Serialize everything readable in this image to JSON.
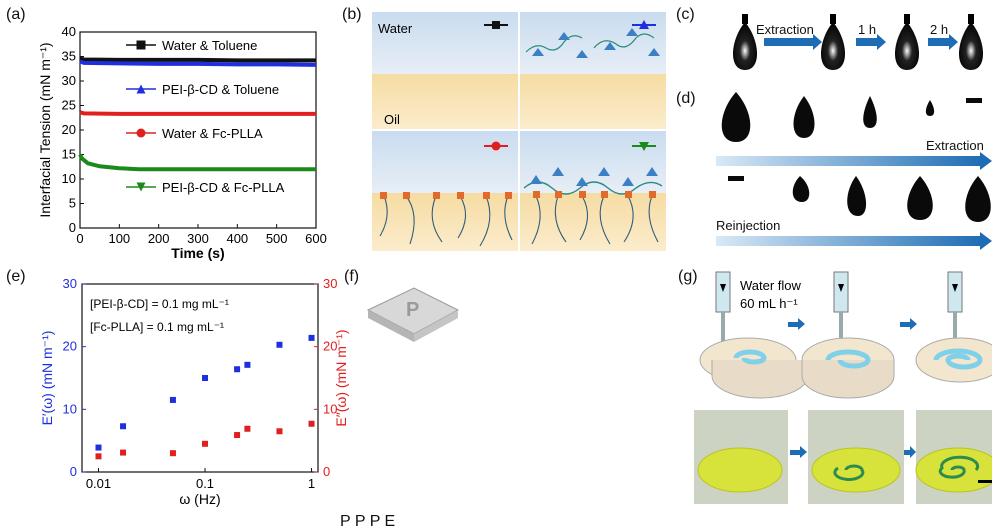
{
  "labels": {
    "a": "(a)",
    "b": "(b)",
    "c": "(c)",
    "d": "(d)",
    "e": "(e)",
    "f": "(f)",
    "g": "(g)"
  },
  "panel_b": {
    "water": "Water",
    "oil": "Oil"
  },
  "panel_c": {
    "extraction": "Extraction",
    "t1": "1 h",
    "t2": "2 h"
  },
  "panel_d": {
    "extraction": "Extraction",
    "reinjection": "Reinjection"
  },
  "panel_g": {
    "flow_line1": "Water flow",
    "flow_line2": "60 mL h⁻¹"
  },
  "colors": {
    "blue": "#1f2fe0",
    "red": "#e0201f",
    "green": "#1b8a1b",
    "black": "#111111",
    "arrow": "#1e6db4"
  },
  "chart_data": [
    {
      "type": "line",
      "xlabel": "Time (s)",
      "ylabel": "Interfacial Tension (mN m⁻¹)",
      "xlim": [
        0,
        600
      ],
      "ylim": [
        0,
        40
      ],
      "xticks": [
        "0",
        "100",
        "200",
        "300",
        "400",
        "500",
        "600"
      ],
      "yticks": [
        "0",
        "5",
        "10",
        "15",
        "20",
        "25",
        "30",
        "35",
        "40"
      ],
      "series": [
        {
          "name": "Water & Toluene",
          "color": "#111111",
          "marker": "square",
          "x": [
            0,
            10,
            100,
            200,
            300,
            400,
            500,
            600
          ],
          "y": [
            34.6,
            34.4,
            34.3,
            34.3,
            34.3,
            34.2,
            34.2,
            34.2
          ]
        },
        {
          "name": "PEI-β-CD & Toluene",
          "color": "#1f2fe0",
          "marker": "triangle",
          "x": [
            0,
            10,
            100,
            200,
            300,
            400,
            500,
            600
          ],
          "y": [
            34.0,
            33.7,
            33.6,
            33.5,
            33.5,
            33.4,
            33.4,
            33.3
          ]
        },
        {
          "name": "Water & Fc-PLLA",
          "color": "#e0201f",
          "marker": "circle",
          "x": [
            0,
            10,
            100,
            200,
            300,
            400,
            500,
            600
          ],
          "y": [
            23.6,
            23.4,
            23.3,
            23.3,
            23.3,
            23.3,
            23.3,
            23.3
          ]
        },
        {
          "name": "PEI-β-CD & Fc-PLLA",
          "color": "#1b8a1b",
          "marker": "triangle-down",
          "x": [
            0,
            5,
            20,
            50,
            100,
            150,
            200,
            300,
            400,
            500,
            600
          ],
          "y": [
            15.0,
            14.2,
            13.2,
            12.6,
            12.2,
            12.0,
            12.0,
            12.0,
            12.0,
            12.0,
            12.0
          ]
        }
      ]
    },
    {
      "type": "scatter",
      "xlabel": "ω (Hz)",
      "ylabel": "E′(ω) (mN m⁻¹)",
      "ylabel2": "E″(ω) (mN m⁻¹)",
      "xscale": "log",
      "xlim": [
        0.007,
        1.15
      ],
      "ylim": [
        0,
        30
      ],
      "xticks": [
        "0.01",
        "0.1",
        "1"
      ],
      "yticks": [
        "0",
        "10",
        "20",
        "30"
      ],
      "annotations": [
        "[PEI-β-CD] = 0.1 mg mL⁻¹",
        "[Fc-PLLA] = 0.1 mg mL⁻¹"
      ],
      "series": [
        {
          "name": "E′(ω)",
          "color": "#1f2fe0",
          "x": [
            0.01,
            0.017,
            0.05,
            0.1,
            0.2,
            0.25,
            0.5,
            1.0
          ],
          "y": [
            3.9,
            7.3,
            11.5,
            15.0,
            16.4,
            17.1,
            20.3,
            21.4
          ]
        },
        {
          "name": "E″(ω)",
          "color": "#e0201f",
          "x": [
            0.01,
            0.017,
            0.05,
            0.1,
            0.2,
            0.25,
            0.5,
            1.0
          ],
          "y": [
            2.5,
            3.1,
            3.0,
            4.5,
            5.9,
            6.9,
            6.5,
            7.7
          ]
        }
      ]
    }
  ]
}
